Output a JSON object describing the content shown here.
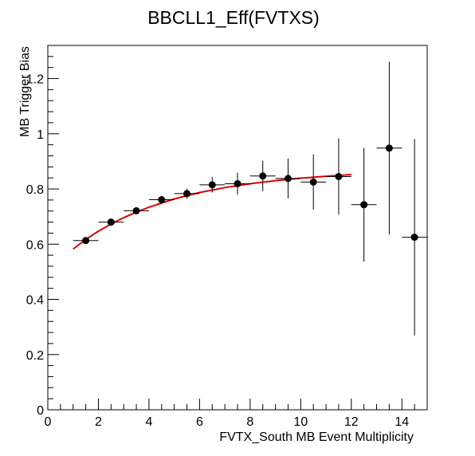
{
  "chart_data": {
    "type": "scatter",
    "title": "BBCLL1_Eff(FVTXS)",
    "xlabel": "FVTX_South MB Event Multiplicity",
    "ylabel": "MB Trigger Bias",
    "xlim": [
      0,
      15
    ],
    "ylim": [
      0,
      1.32
    ],
    "x_ticks": [
      "0",
      "2",
      "4",
      "6",
      "8",
      "10",
      "12",
      "14"
    ],
    "y_ticks": [
      "0",
      "0.2",
      "0.4",
      "0.6",
      "0.8",
      "1",
      "1.2"
    ],
    "grid": false,
    "legend": "none",
    "points": [
      {
        "x": 1.5,
        "y": 0.613,
        "xerr": 0.5,
        "yerr": 0.012
      },
      {
        "x": 2.5,
        "y": 0.68,
        "xerr": 0.5,
        "yerr": 0.012
      },
      {
        "x": 3.5,
        "y": 0.721,
        "xerr": 0.5,
        "yerr": 0.012
      },
      {
        "x": 4.5,
        "y": 0.761,
        "xerr": 0.5,
        "yerr": 0.014
      },
      {
        "x": 5.5,
        "y": 0.783,
        "xerr": 0.5,
        "yerr": 0.018
      },
      {
        "x": 6.5,
        "y": 0.815,
        "xerr": 0.5,
        "yerr": 0.028
      },
      {
        "x": 7.5,
        "y": 0.819,
        "xerr": 0.5,
        "yerr": 0.04
      },
      {
        "x": 8.5,
        "y": 0.847,
        "xerr": 0.5,
        "yerr": 0.055
      },
      {
        "x": 9.5,
        "y": 0.838,
        "xerr": 0.5,
        "yerr": 0.072
      },
      {
        "x": 10.5,
        "y": 0.825,
        "xerr": 0.5,
        "yerr": 0.1
      },
      {
        "x": 11.5,
        "y": 0.845,
        "xerr": 0.5,
        "yerr": 0.138
      },
      {
        "x": 12.5,
        "y": 0.743,
        "xerr": 0.5,
        "yerr": 0.206
      },
      {
        "x": 13.5,
        "y": 0.948,
        "xerr": 0.5,
        "yerr": 0.313
      },
      {
        "x": 14.5,
        "y": 0.625,
        "xerr": 0.5,
        "yerr": 0.356
      }
    ],
    "fit": {
      "color": "#dd0000",
      "x": [
        1.0,
        1.5,
        2.0,
        2.5,
        3.0,
        3.5,
        4.0,
        5.0,
        6.0,
        7.0,
        8.0,
        9.0,
        10.0,
        11.0,
        12.0
      ],
      "y": [
        0.582,
        0.617,
        0.647,
        0.673,
        0.696,
        0.716,
        0.734,
        0.764,
        0.787,
        0.805,
        0.819,
        0.83,
        0.839,
        0.846,
        0.852
      ]
    },
    "marker_color": "#000000"
  }
}
